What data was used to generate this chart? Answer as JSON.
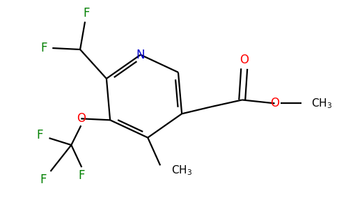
{
  "bg_color": "#ffffff",
  "bond_color": "#000000",
  "N_color": "#0000cd",
  "O_color": "#ff0000",
  "F_color": "#008000",
  "line_width": 1.6,
  "dbo": 0.05,
  "figsize": [
    4.84,
    3.0
  ],
  "dpi": 100,
  "xlim": [
    0,
    4.84
  ],
  "ylim": [
    0,
    3.0
  ]
}
